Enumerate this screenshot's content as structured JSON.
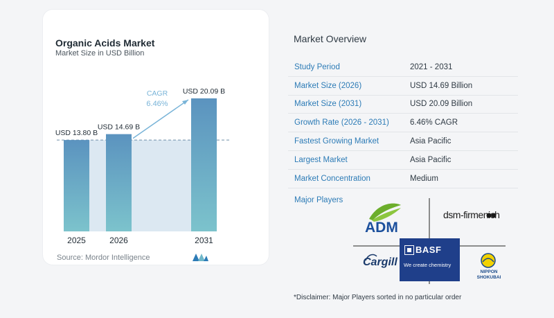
{
  "chart_data": {
    "type": "bar",
    "title": "Organic Acids Market",
    "subtitle": "Market Size in USD Billion",
    "categories": [
      "2025",
      "2026",
      "2031"
    ],
    "values": [
      13.8,
      14.69,
      20.09
    ],
    "data_labels": [
      "USD 13.80 B",
      "USD 14.69 B",
      "USD 20.09 B"
    ],
    "annotation": {
      "label": "CAGR",
      "value": "6.46%"
    },
    "grid": false,
    "colors": {
      "bar_top": "#5b93bf",
      "bar_bottom": "#7cc3cc",
      "band": "#dce8f2",
      "arrow": "#79b4d8"
    }
  },
  "source": "Source:  Mordor Intelligence",
  "overview": {
    "title": "Market Overview",
    "rows": [
      {
        "label": "Study Period",
        "value": "2021 - 2031"
      },
      {
        "label": "Market Size (2026)",
        "value": "USD 14.69 Billion"
      },
      {
        "label": "Market Size (2031)",
        "value": "USD 20.09 Billion"
      },
      {
        "label": "Growth Rate (2026 - 2031)",
        "value": "6.46% CAGR"
      },
      {
        "label": "Fastest Growing Market",
        "value": "Asia Pacific"
      },
      {
        "label": "Largest Market",
        "value": "Asia Pacific"
      },
      {
        "label": "Market Concentration",
        "value": "Medium"
      }
    ]
  },
  "players": {
    "title": "Major Players",
    "logos": {
      "adm": "ADM",
      "dsm": "dsm-firmenich",
      "cargill": "Cargill",
      "basf": "BASF",
      "basf_tag": "We create chemistry",
      "nippon": "NIPPON SHOKUBAI"
    }
  },
  "disclaimer": "*Disclaimer: Major Players sorted in no particular order",
  "theme": {
    "accent": "#2c7bb6"
  }
}
